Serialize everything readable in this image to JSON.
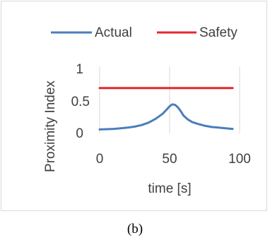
{
  "caption": "(b)",
  "chart_data": {
    "type": "line",
    "xlabel": "time [s]",
    "ylabel": "Proximity Index",
    "xlim": [
      0,
      100
    ],
    "ylim": [
      0,
      1
    ],
    "xticks": [
      "0",
      "50",
      "100"
    ],
    "yticks": [
      "0",
      "0.5",
      "1"
    ],
    "grid": "vertical",
    "legend_position": "top",
    "series": [
      {
        "name": "Actual",
        "color": "#4a7ebb",
        "points": [
          [
            0,
            0.04
          ],
          [
            5,
            0.045
          ],
          [
            10,
            0.05
          ],
          [
            15,
            0.06
          ],
          [
            20,
            0.07
          ],
          [
            25,
            0.085
          ],
          [
            30,
            0.11
          ],
          [
            35,
            0.15
          ],
          [
            40,
            0.21
          ],
          [
            45,
            0.29
          ],
          [
            48,
            0.36
          ],
          [
            50,
            0.41
          ],
          [
            52,
            0.44
          ],
          [
            54,
            0.43
          ],
          [
            56,
            0.39
          ],
          [
            58,
            0.33
          ],
          [
            60,
            0.26
          ],
          [
            63,
            0.2
          ],
          [
            66,
            0.16
          ],
          [
            70,
            0.13
          ],
          [
            75,
            0.1
          ],
          [
            80,
            0.08
          ],
          [
            85,
            0.07
          ],
          [
            90,
            0.06
          ],
          [
            95,
            0.05
          ]
        ]
      },
      {
        "name": "Safety",
        "color": "#e8262c",
        "points": [
          [
            0,
            0.7
          ],
          [
            95,
            0.7
          ]
        ]
      }
    ]
  }
}
